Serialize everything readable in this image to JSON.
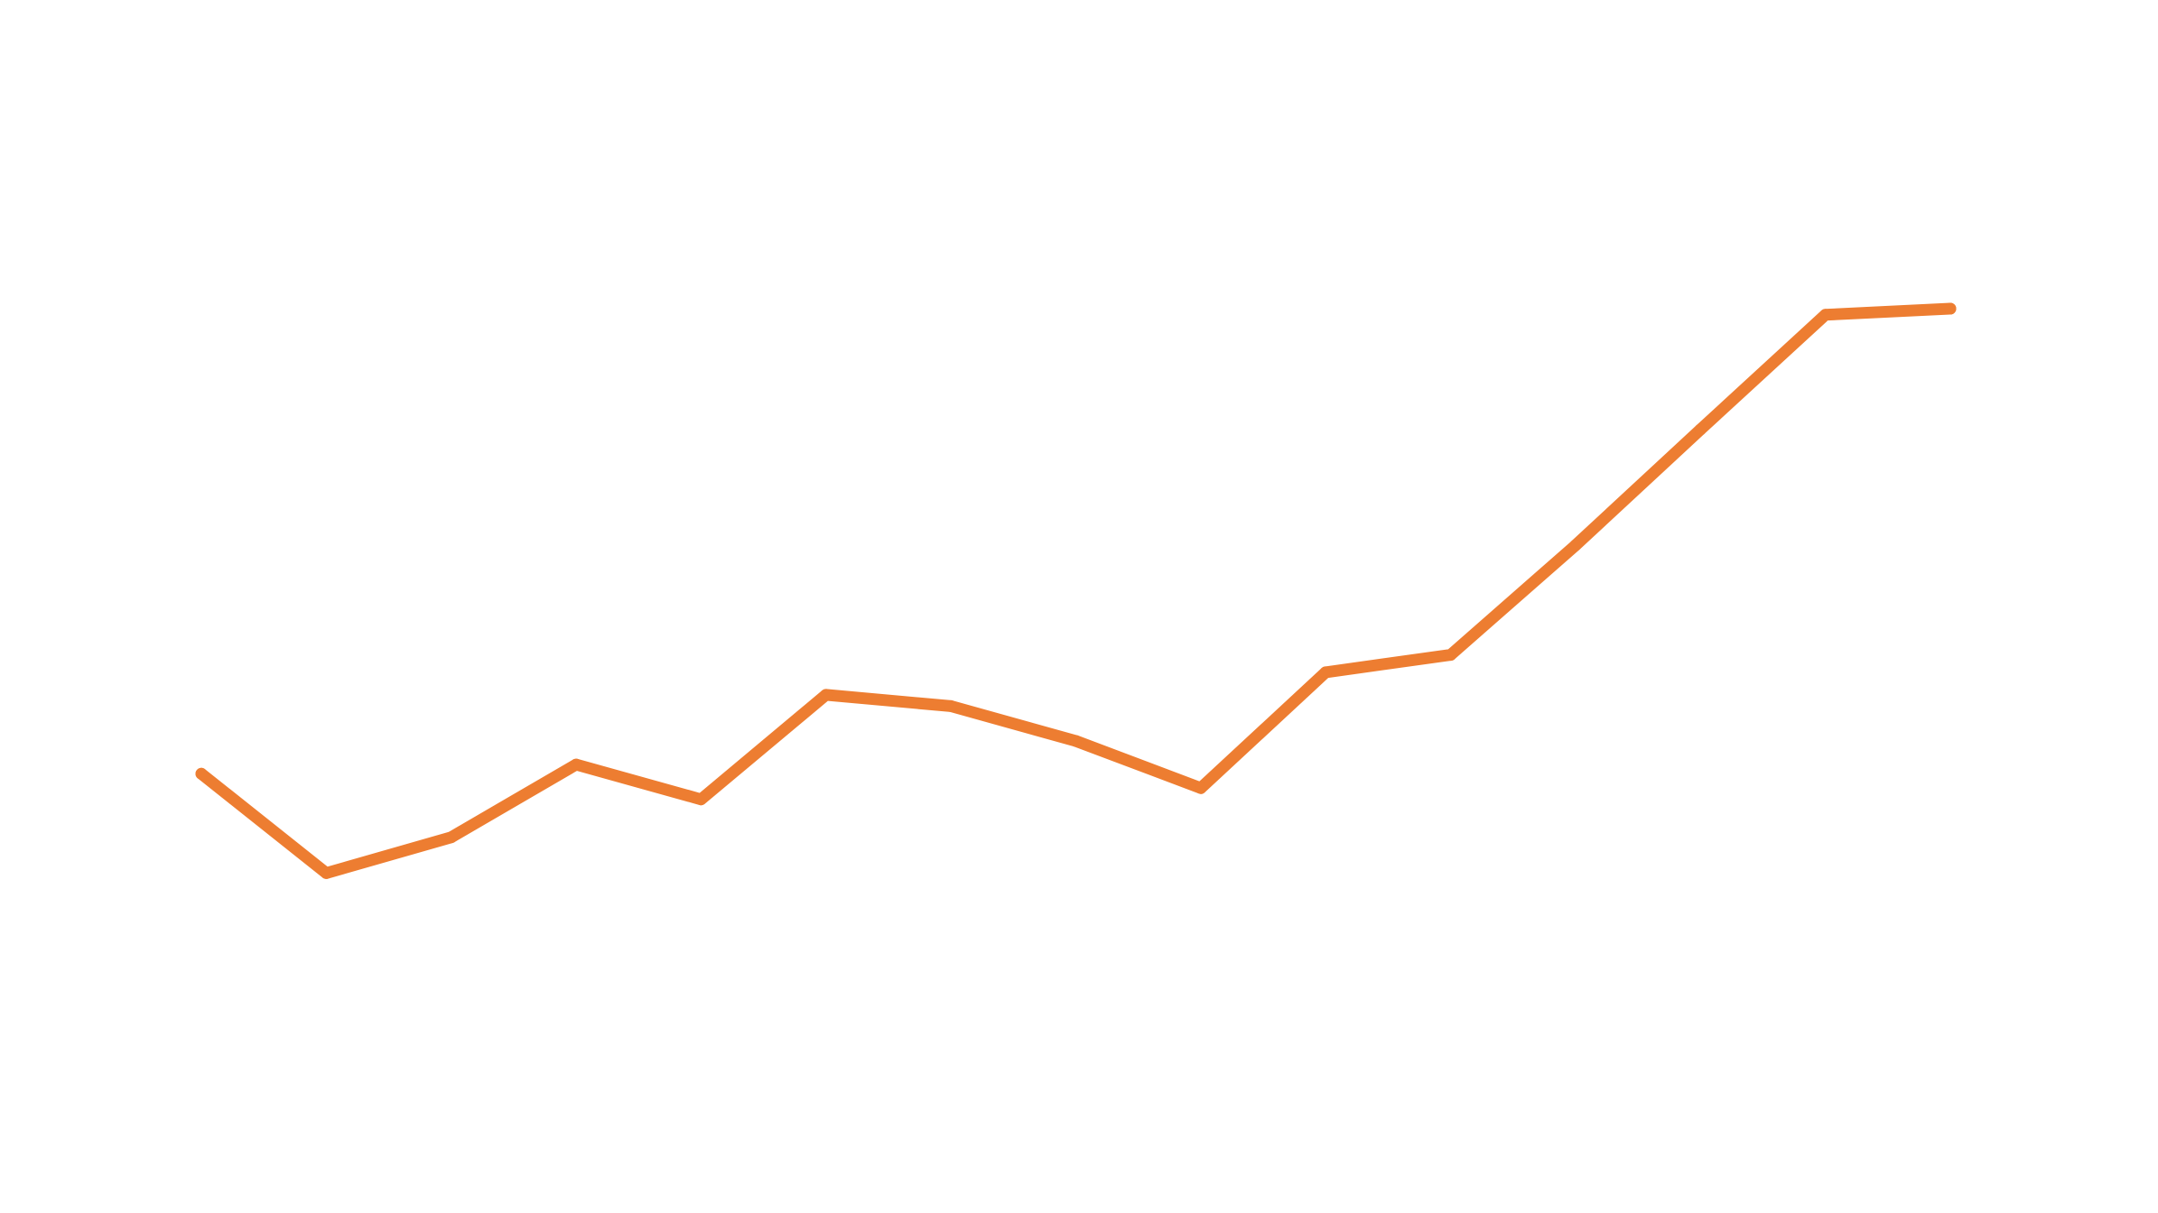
{
  "chart_data": {
    "type": "line",
    "x": [
      1,
      2,
      3,
      4,
      5,
      6,
      7,
      8,
      9,
      10,
      11,
      12,
      13,
      14,
      15
    ],
    "series": [
      {
        "values": [
          34.6,
          24.9,
          28.4,
          35.5,
          32.1,
          42.3,
          41.2,
          37.8,
          33.2,
          44.5,
          46.2,
          56.9,
          68.2,
          79.4,
          80.0
        ],
        "color": "#ED7D31"
      }
    ],
    "title": "",
    "xlabel": "",
    "ylabel": "",
    "ylim": [
      0,
      100
    ],
    "grid": false,
    "axes_visible": false,
    "legend": "none"
  }
}
